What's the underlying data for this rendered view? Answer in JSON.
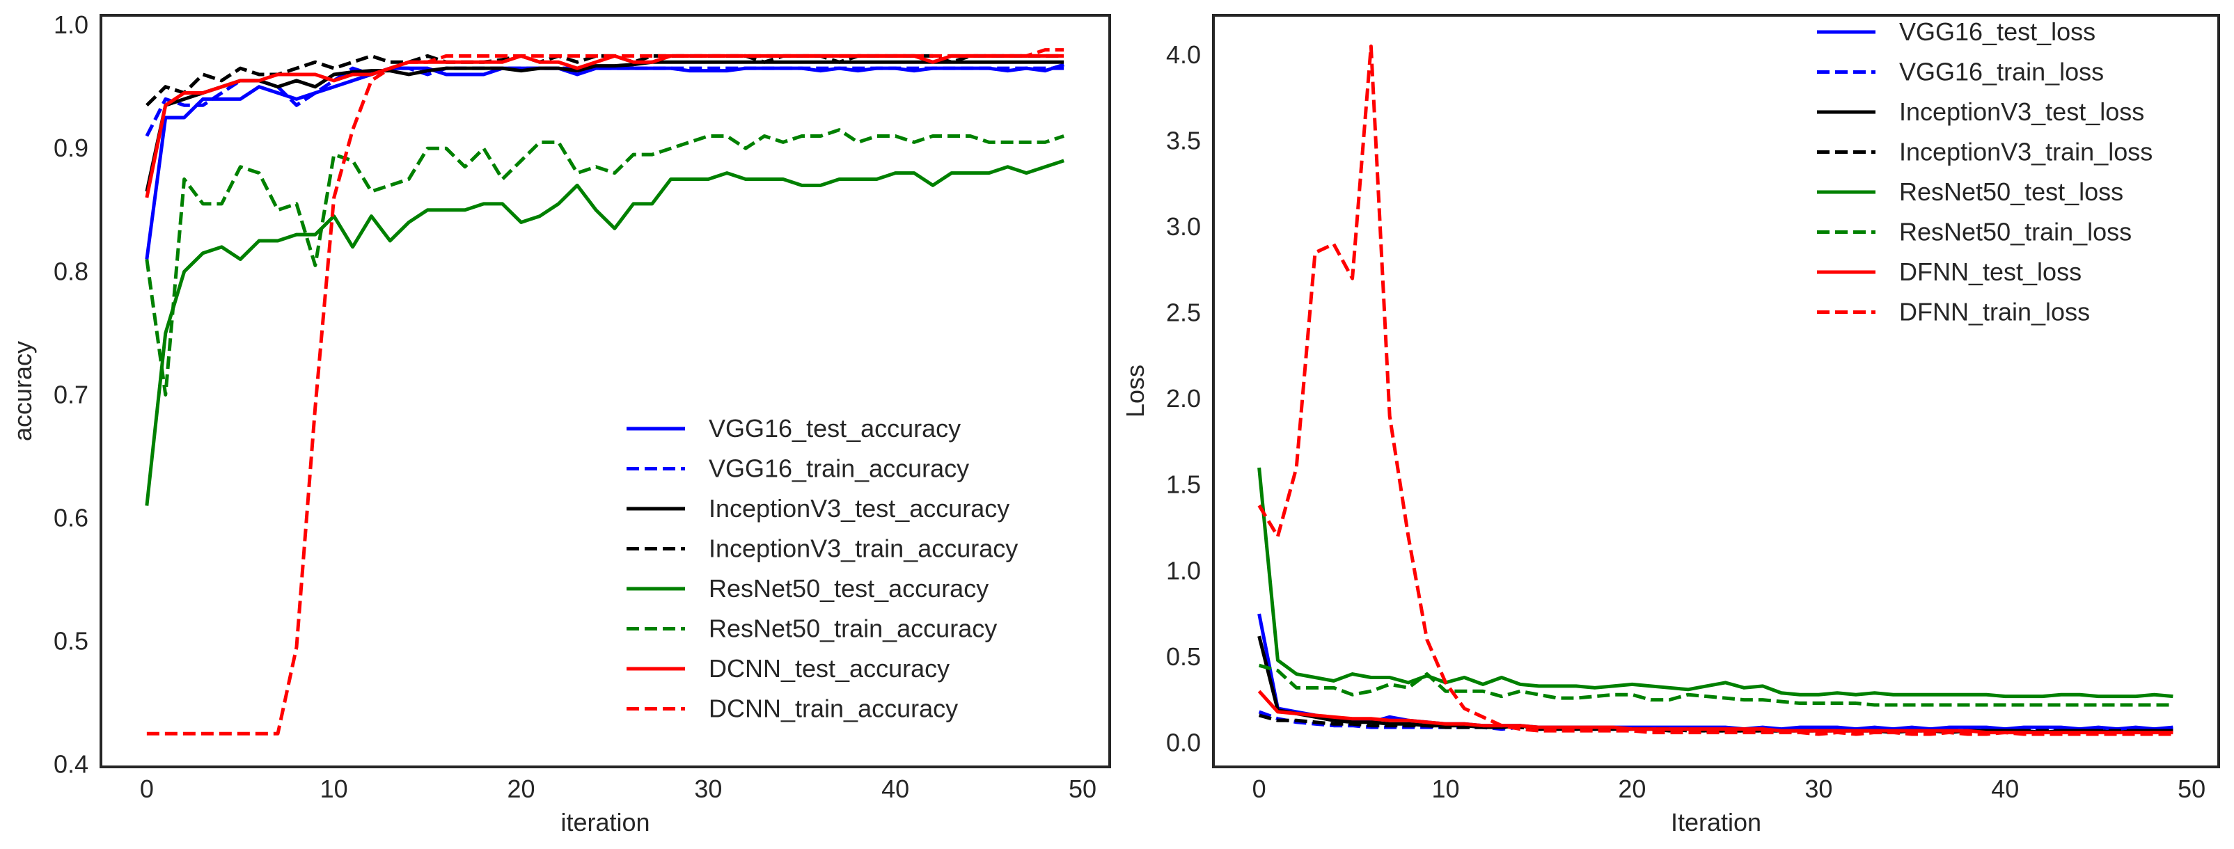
{
  "chart_data": [
    {
      "type": "line",
      "title": "",
      "xlabel": "iteration",
      "ylabel": "accuracy",
      "xlim": [
        -2.45,
        51.45
      ],
      "ylim": [
        0.398,
        1.008
      ],
      "xticks": [
        0,
        10,
        20,
        30,
        40,
        50
      ],
      "yticks": [
        0.4,
        0.5,
        0.6,
        0.7,
        0.8,
        0.9,
        1.0
      ],
      "xtick_labels": [
        "0",
        "10",
        "20",
        "30",
        "40",
        "50"
      ],
      "ytick_labels": [
        "0.4",
        "0.5",
        "0.6",
        "0.7",
        "0.8",
        "0.9",
        "1.0"
      ],
      "legend_position": "lower-right",
      "x": [
        0,
        1,
        2,
        3,
        4,
        5,
        6,
        7,
        8,
        9,
        10,
        11,
        12,
        13,
        14,
        15,
        16,
        17,
        18,
        19,
        20,
        21,
        22,
        23,
        24,
        25,
        26,
        27,
        28,
        29,
        30,
        31,
        32,
        33,
        34,
        35,
        36,
        37,
        38,
        39,
        40,
        41,
        42,
        43,
        44,
        45,
        46,
        47,
        48,
        49
      ],
      "series": [
        {
          "name": "VGG16_test_accuracy",
          "color": "#0000ff",
          "dash": "solid",
          "values": [
            0.81,
            0.925,
            0.925,
            0.94,
            0.94,
            0.94,
            0.95,
            0.945,
            0.94,
            0.945,
            0.95,
            0.955,
            0.96,
            0.965,
            0.965,
            0.965,
            0.96,
            0.96,
            0.96,
            0.965,
            0.965,
            0.965,
            0.965,
            0.96,
            0.965,
            0.965,
            0.965,
            0.965,
            0.965,
            0.963,
            0.963,
            0.963,
            0.965,
            0.965,
            0.965,
            0.965,
            0.963,
            0.965,
            0.963,
            0.965,
            0.965,
            0.963,
            0.965,
            0.965,
            0.965,
            0.965,
            0.963,
            0.965,
            0.963,
            0.968
          ]
        },
        {
          "name": "VGG16_train_accuracy",
          "color": "#0000ff",
          "dash": "dashed",
          "values": [
            0.91,
            0.94,
            0.935,
            0.935,
            0.945,
            0.955,
            0.955,
            0.95,
            0.935,
            0.945,
            0.955,
            0.965,
            0.96,
            0.965,
            0.965,
            0.96,
            0.965,
            0.965,
            0.965,
            0.965,
            0.965,
            0.965,
            0.965,
            0.965,
            0.965,
            0.965,
            0.965,
            0.965,
            0.965,
            0.965,
            0.965,
            0.965,
            0.965,
            0.965,
            0.965,
            0.965,
            0.965,
            0.965,
            0.965,
            0.965,
            0.965,
            0.965,
            0.965,
            0.965,
            0.965,
            0.965,
            0.965,
            0.965,
            0.965,
            0.965
          ]
        },
        {
          "name": "InceptionV3_test_accuracy",
          "color": "#000000",
          "dash": "solid",
          "values": [
            0.865,
            0.935,
            0.94,
            0.945,
            0.95,
            0.955,
            0.955,
            0.95,
            0.955,
            0.95,
            0.96,
            0.962,
            0.963,
            0.963,
            0.96,
            0.963,
            0.965,
            0.965,
            0.965,
            0.965,
            0.963,
            0.965,
            0.965,
            0.963,
            0.967,
            0.967,
            0.968,
            0.97,
            0.97,
            0.97,
            0.97,
            0.97,
            0.97,
            0.97,
            0.97,
            0.97,
            0.97,
            0.97,
            0.97,
            0.97,
            0.97,
            0.97,
            0.97,
            0.97,
            0.97,
            0.97,
            0.97,
            0.97,
            0.97,
            0.97
          ]
        },
        {
          "name": "InceptionV3_train_accuracy",
          "color": "#000000",
          "dash": "dashed",
          "values": [
            0.935,
            0.95,
            0.945,
            0.96,
            0.955,
            0.965,
            0.96,
            0.96,
            0.965,
            0.97,
            0.965,
            0.97,
            0.975,
            0.97,
            0.97,
            0.975,
            0.97,
            0.97,
            0.97,
            0.972,
            0.975,
            0.97,
            0.975,
            0.97,
            0.975,
            0.975,
            0.97,
            0.975,
            0.975,
            0.975,
            0.975,
            0.975,
            0.975,
            0.97,
            0.975,
            0.975,
            0.975,
            0.97,
            0.975,
            0.975,
            0.975,
            0.975,
            0.975,
            0.97,
            0.975,
            0.975,
            0.975,
            0.975,
            0.975,
            0.975
          ]
        },
        {
          "name": "ResNet50_test_accuracy",
          "color": "#008000",
          "dash": "solid",
          "values": [
            0.61,
            0.75,
            0.8,
            0.815,
            0.82,
            0.81,
            0.825,
            0.825,
            0.83,
            0.83,
            0.845,
            0.82,
            0.845,
            0.825,
            0.84,
            0.85,
            0.85,
            0.85,
            0.855,
            0.855,
            0.84,
            0.845,
            0.855,
            0.87,
            0.85,
            0.835,
            0.855,
            0.855,
            0.875,
            0.875,
            0.875,
            0.88,
            0.875,
            0.875,
            0.875,
            0.87,
            0.87,
            0.875,
            0.875,
            0.875,
            0.88,
            0.88,
            0.87,
            0.88,
            0.88,
            0.88,
            0.885,
            0.88,
            0.885,
            0.89
          ]
        },
        {
          "name": "ResNet50_train_accuracy",
          "color": "#008000",
          "dash": "dashed",
          "values": [
            0.81,
            0.7,
            0.875,
            0.855,
            0.855,
            0.885,
            0.88,
            0.85,
            0.855,
            0.805,
            0.895,
            0.89,
            0.865,
            0.87,
            0.875,
            0.9,
            0.9,
            0.885,
            0.9,
            0.875,
            0.89,
            0.905,
            0.905,
            0.88,
            0.885,
            0.88,
            0.895,
            0.895,
            0.9,
            0.905,
            0.91,
            0.91,
            0.9,
            0.91,
            0.905,
            0.91,
            0.91,
            0.915,
            0.905,
            0.91,
            0.91,
            0.905,
            0.91,
            0.91,
            0.91,
            0.905,
            0.905,
            0.905,
            0.905,
            0.91
          ]
        },
        {
          "name": "DCNN_test_accuracy",
          "color": "#ff0000",
          "dash": "solid",
          "values": [
            0.86,
            0.935,
            0.945,
            0.945,
            0.95,
            0.955,
            0.955,
            0.96,
            0.96,
            0.96,
            0.955,
            0.96,
            0.96,
            0.965,
            0.97,
            0.97,
            0.97,
            0.97,
            0.97,
            0.97,
            0.975,
            0.97,
            0.97,
            0.965,
            0.97,
            0.975,
            0.97,
            0.97,
            0.975,
            0.975,
            0.975,
            0.975,
            0.975,
            0.975,
            0.975,
            0.975,
            0.975,
            0.975,
            0.975,
            0.975,
            0.975,
            0.975,
            0.97,
            0.975,
            0.975,
            0.975,
            0.975,
            0.975,
            0.975,
            0.975
          ]
        },
        {
          "name": "DCNN_train_accuracy",
          "color": "#ff0000",
          "dash": "dashed",
          "values": [
            0.425,
            0.425,
            0.425,
            0.425,
            0.425,
            0.425,
            0.425,
            0.425,
            0.495,
            0.69,
            0.86,
            0.915,
            0.955,
            0.965,
            0.97,
            0.97,
            0.975,
            0.975,
            0.975,
            0.975,
            0.975,
            0.975,
            0.975,
            0.975,
            0.975,
            0.975,
            0.975,
            0.975,
            0.975,
            0.975,
            0.975,
            0.975,
            0.975,
            0.975,
            0.975,
            0.975,
            0.975,
            0.975,
            0.975,
            0.975,
            0.975,
            0.975,
            0.975,
            0.975,
            0.975,
            0.975,
            0.975,
            0.975,
            0.98,
            0.98
          ]
        }
      ]
    },
    {
      "type": "line",
      "title": "",
      "xlabel": "Iteration",
      "ylabel": "Loss",
      "xlim": [
        -2.45,
        51.45
      ],
      "ylim": [
        -0.14,
        4.23
      ],
      "xticks": [
        0,
        10,
        20,
        30,
        40,
        50
      ],
      "yticks": [
        0.0,
        0.5,
        1.0,
        1.5,
        2.0,
        2.5,
        3.0,
        3.5,
        4.0
      ],
      "xtick_labels": [
        "0",
        "10",
        "20",
        "30",
        "40",
        "50"
      ],
      "ytick_labels": [
        "0.0",
        "0.5",
        "1.0",
        "1.5",
        "2.0",
        "2.5",
        "3.0",
        "3.5",
        "4.0"
      ],
      "legend_position": "upper-right",
      "x": [
        0,
        1,
        2,
        3,
        4,
        5,
        6,
        7,
        8,
        9,
        10,
        11,
        12,
        13,
        14,
        15,
        16,
        17,
        18,
        19,
        20,
        21,
        22,
        23,
        24,
        25,
        26,
        27,
        28,
        29,
        30,
        31,
        32,
        33,
        34,
        35,
        36,
        37,
        38,
        39,
        40,
        41,
        42,
        43,
        44,
        45,
        46,
        47,
        48,
        49
      ],
      "series": [
        {
          "name": "VGG16_test_loss",
          "color": "#0000ff",
          "dash": "solid",
          "values": [
            0.75,
            0.2,
            0.18,
            0.16,
            0.14,
            0.13,
            0.12,
            0.15,
            0.13,
            0.12,
            0.11,
            0.11,
            0.1,
            0.1,
            0.1,
            0.09,
            0.09,
            0.09,
            0.09,
            0.09,
            0.09,
            0.09,
            0.09,
            0.09,
            0.09,
            0.09,
            0.08,
            0.09,
            0.08,
            0.09,
            0.09,
            0.09,
            0.08,
            0.09,
            0.08,
            0.09,
            0.08,
            0.09,
            0.09,
            0.09,
            0.08,
            0.09,
            0.09,
            0.09,
            0.08,
            0.09,
            0.08,
            0.09,
            0.08,
            0.09
          ]
        },
        {
          "name": "VGG16_train_loss",
          "color": "#0000ff",
          "dash": "dashed",
          "values": [
            0.18,
            0.14,
            0.12,
            0.11,
            0.1,
            0.1,
            0.09,
            0.09,
            0.09,
            0.09,
            0.09,
            0.09,
            0.09,
            0.08,
            0.09,
            0.08,
            0.08,
            0.08,
            0.08,
            0.08,
            0.08,
            0.08,
            0.08,
            0.08,
            0.08,
            0.08,
            0.08,
            0.08,
            0.08,
            0.08,
            0.08,
            0.08,
            0.08,
            0.08,
            0.08,
            0.08,
            0.08,
            0.08,
            0.08,
            0.08,
            0.08,
            0.08,
            0.08,
            0.08,
            0.08,
            0.08,
            0.08,
            0.08,
            0.08,
            0.08
          ]
        },
        {
          "name": "InceptionV3_test_loss",
          "color": "#000000",
          "dash": "solid",
          "values": [
            0.62,
            0.19,
            0.17,
            0.15,
            0.13,
            0.12,
            0.12,
            0.11,
            0.11,
            0.1,
            0.1,
            0.1,
            0.09,
            0.09,
            0.1,
            0.08,
            0.08,
            0.08,
            0.08,
            0.08,
            0.08,
            0.08,
            0.07,
            0.08,
            0.07,
            0.07,
            0.07,
            0.07,
            0.07,
            0.07,
            0.07,
            0.07,
            0.07,
            0.07,
            0.06,
            0.07,
            0.07,
            0.06,
            0.07,
            0.07,
            0.07,
            0.07,
            0.06,
            0.07,
            0.07,
            0.07,
            0.06,
            0.07,
            0.07,
            0.07
          ]
        },
        {
          "name": "InceptionV3_train_loss",
          "color": "#000000",
          "dash": "dashed",
          "values": [
            0.16,
            0.13,
            0.13,
            0.12,
            0.11,
            0.11,
            0.1,
            0.1,
            0.1,
            0.1,
            0.09,
            0.09,
            0.09,
            0.09,
            0.09,
            0.08,
            0.08,
            0.08,
            0.08,
            0.08,
            0.08,
            0.08,
            0.08,
            0.07,
            0.07,
            0.07,
            0.07,
            0.07,
            0.07,
            0.07,
            0.07,
            0.07,
            0.07,
            0.07,
            0.07,
            0.07,
            0.07,
            0.07,
            0.07,
            0.07,
            0.07,
            0.07,
            0.07,
            0.07,
            0.07,
            0.07,
            0.07,
            0.07,
            0.07,
            0.07
          ]
        },
        {
          "name": "ResNet50_test_loss",
          "color": "#008000",
          "dash": "solid",
          "values": [
            1.6,
            0.48,
            0.4,
            0.38,
            0.36,
            0.4,
            0.38,
            0.38,
            0.35,
            0.39,
            0.35,
            0.38,
            0.34,
            0.38,
            0.34,
            0.33,
            0.33,
            0.33,
            0.32,
            0.33,
            0.34,
            0.33,
            0.32,
            0.31,
            0.33,
            0.35,
            0.32,
            0.33,
            0.29,
            0.28,
            0.28,
            0.29,
            0.28,
            0.29,
            0.28,
            0.28,
            0.28,
            0.28,
            0.28,
            0.28,
            0.27,
            0.27,
            0.27,
            0.28,
            0.28,
            0.27,
            0.27,
            0.27,
            0.28,
            0.27
          ]
        },
        {
          "name": "ResNet50_train_loss",
          "color": "#008000",
          "dash": "dashed",
          "values": [
            0.45,
            0.42,
            0.32,
            0.32,
            0.32,
            0.28,
            0.3,
            0.34,
            0.32,
            0.4,
            0.3,
            0.3,
            0.3,
            0.27,
            0.3,
            0.28,
            0.26,
            0.26,
            0.27,
            0.28,
            0.28,
            0.25,
            0.25,
            0.28,
            0.27,
            0.26,
            0.25,
            0.25,
            0.24,
            0.23,
            0.23,
            0.23,
            0.23,
            0.22,
            0.22,
            0.22,
            0.22,
            0.22,
            0.22,
            0.22,
            0.22,
            0.22,
            0.22,
            0.22,
            0.22,
            0.22,
            0.22,
            0.22,
            0.22,
            0.22
          ]
        },
        {
          "name": "DFNN_test_loss",
          "color": "#ff0000",
          "dash": "solid",
          "values": [
            0.3,
            0.18,
            0.17,
            0.16,
            0.15,
            0.14,
            0.14,
            0.13,
            0.13,
            0.12,
            0.11,
            0.11,
            0.1,
            0.1,
            0.1,
            0.09,
            0.09,
            0.09,
            0.09,
            0.09,
            0.08,
            0.08,
            0.08,
            0.08,
            0.08,
            0.08,
            0.08,
            0.08,
            0.07,
            0.07,
            0.07,
            0.07,
            0.07,
            0.07,
            0.07,
            0.07,
            0.07,
            0.07,
            0.07,
            0.06,
            0.06,
            0.06,
            0.06,
            0.06,
            0.06,
            0.06,
            0.06,
            0.06,
            0.06,
            0.06
          ]
        },
        {
          "name": "DFNN_train_loss",
          "color": "#ff0000",
          "dash": "dashed",
          "values": [
            1.38,
            1.2,
            1.6,
            2.85,
            2.9,
            2.7,
            4.05,
            1.9,
            1.2,
            0.6,
            0.35,
            0.2,
            0.15,
            0.1,
            0.08,
            0.07,
            0.07,
            0.07,
            0.07,
            0.07,
            0.07,
            0.06,
            0.06,
            0.06,
            0.06,
            0.06,
            0.06,
            0.06,
            0.06,
            0.06,
            0.05,
            0.06,
            0.05,
            0.06,
            0.06,
            0.05,
            0.05,
            0.06,
            0.05,
            0.05,
            0.06,
            0.05,
            0.05,
            0.05,
            0.05,
            0.05,
            0.05,
            0.05,
            0.05,
            0.05
          ]
        }
      ]
    }
  ]
}
